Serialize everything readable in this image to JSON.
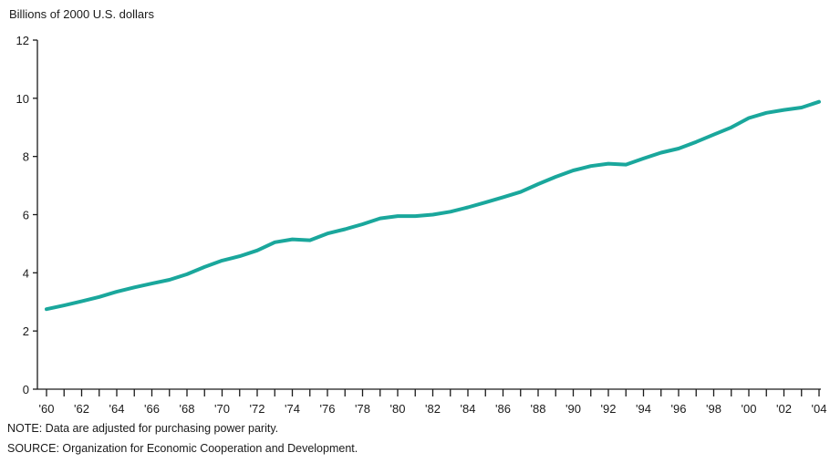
{
  "chart_data": {
    "type": "line",
    "ylabel": "Billions of 2000 U.S. dollars",
    "ylim": [
      0,
      12
    ],
    "y_ticks": [
      0,
      2,
      4,
      6,
      8,
      10,
      12
    ],
    "x_tick_labels": [
      "'60",
      "'62",
      "'64",
      "'66",
      "'68",
      "'70",
      "'72",
      "'74",
      "'76",
      "'78",
      "'80",
      "'82",
      "'84",
      "'86",
      "'88",
      "'90",
      "'92",
      "'94",
      "'96",
      "'98",
      "'00",
      "'02",
      "'04"
    ],
    "grid": false,
    "line_color": "#1aa79c",
    "series": [
      {
        "x": [
          1960,
          1961,
          1962,
          1963,
          1964,
          1965,
          1966,
          1967,
          1968,
          1969,
          1970,
          1971,
          1972,
          1973,
          1974,
          1975,
          1976,
          1977,
          1978,
          1979,
          1980,
          1981,
          1982,
          1983,
          1984,
          1985,
          1986,
          1987,
          1988,
          1989,
          1990,
          1991,
          1992,
          1993,
          1994,
          1995,
          1996,
          1997,
          1998,
          1999,
          2000,
          2001,
          2002,
          2003,
          2004
        ],
        "values": [
          2.75,
          2.88,
          3.02,
          3.17,
          3.35,
          3.5,
          3.63,
          3.76,
          3.95,
          4.2,
          4.42,
          4.57,
          4.77,
          5.05,
          5.15,
          5.12,
          5.35,
          5.5,
          5.67,
          5.87,
          5.95,
          5.95,
          6.0,
          6.1,
          6.25,
          6.42,
          6.6,
          6.78,
          7.05,
          7.3,
          7.52,
          7.67,
          7.75,
          7.72,
          7.93,
          8.13,
          8.27,
          8.5,
          8.75,
          9.0,
          9.32,
          9.5,
          9.6,
          9.68,
          9.88
        ]
      }
    ]
  },
  "notes": {
    "note": "NOTE: Data are adjusted for purchasing power parity.",
    "source": "SOURCE: Organization for Economic Cooperation and Development."
  }
}
